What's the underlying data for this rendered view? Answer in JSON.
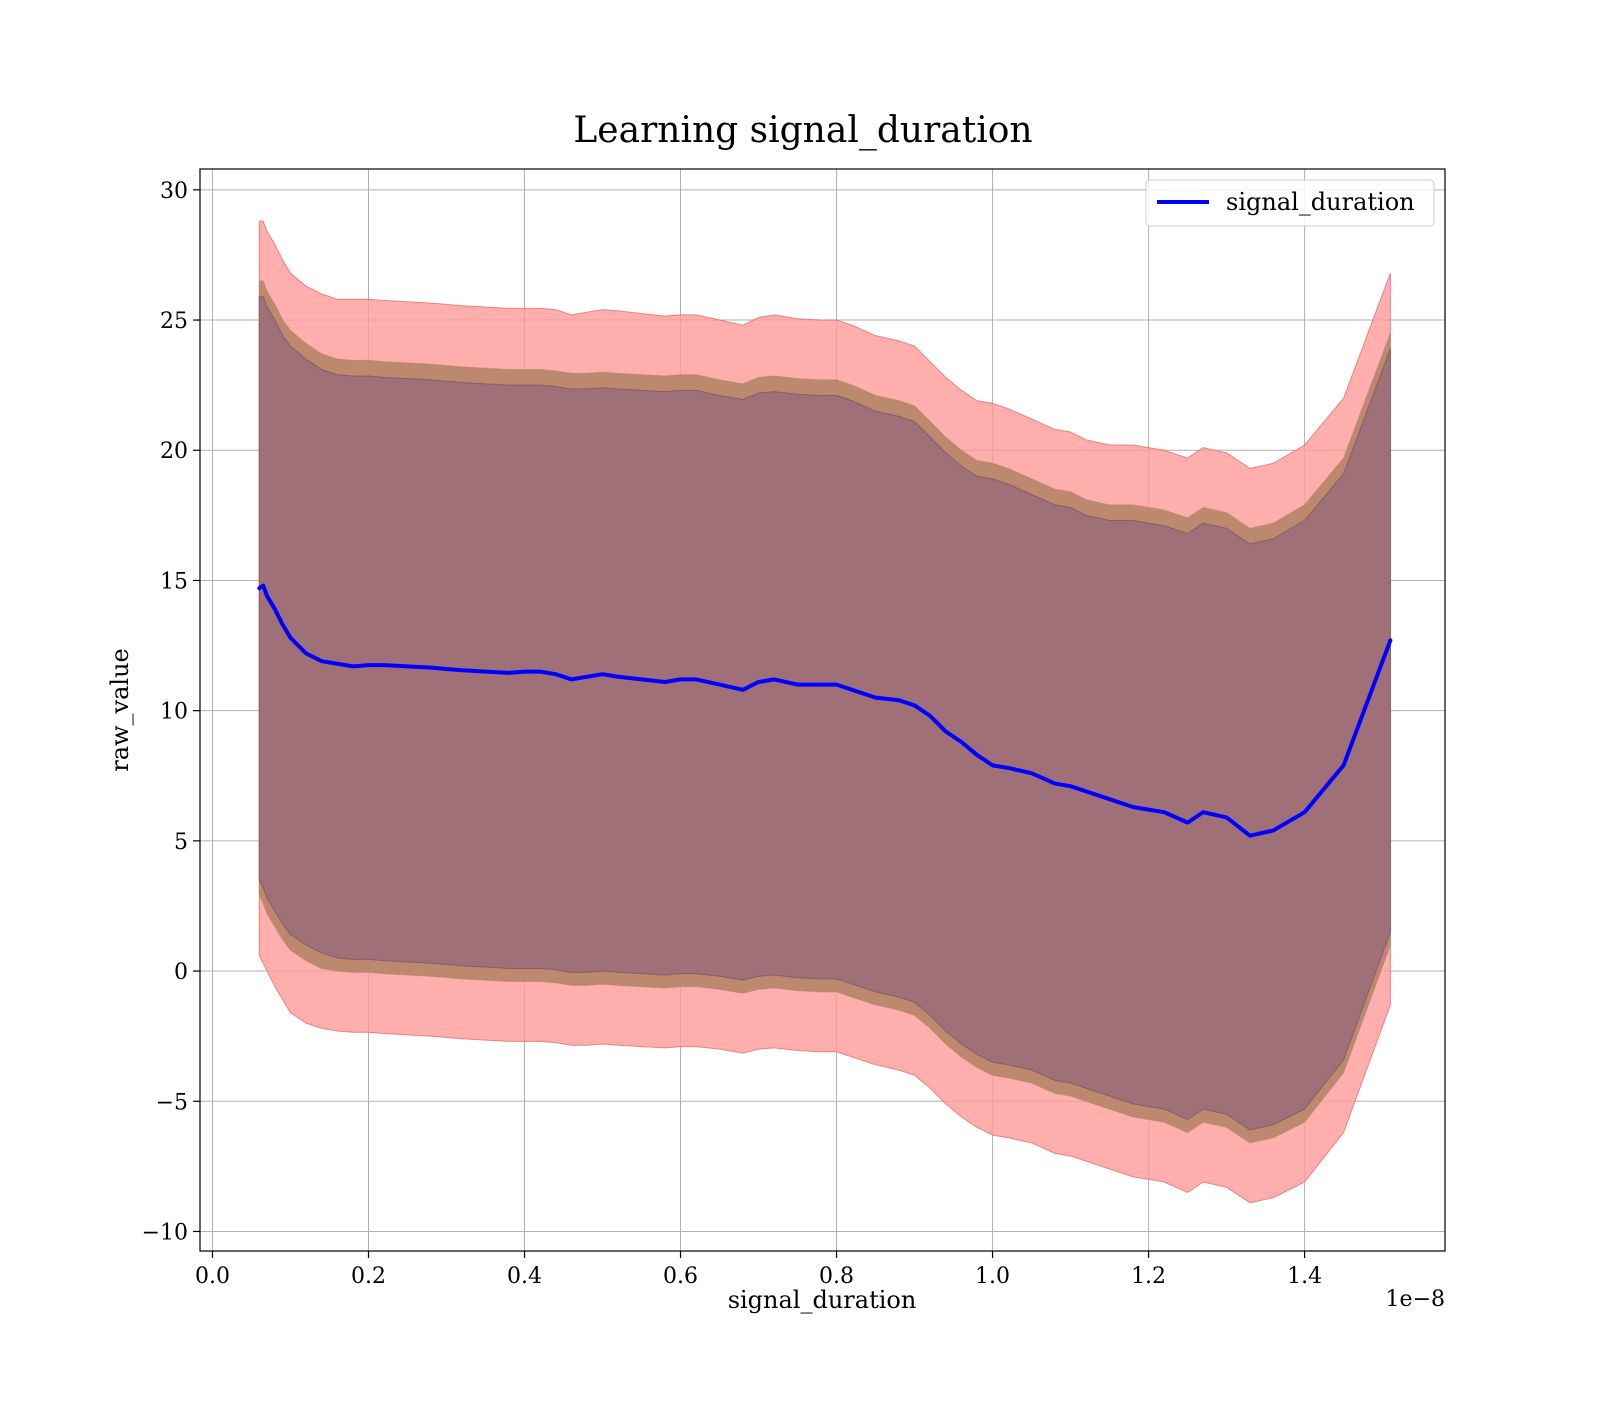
{
  "chart_data": {
    "type": "line",
    "title": "Learning signal_duration",
    "xlabel": "signal_duration",
    "ylabel": "raw_value",
    "x_offset_label": "1e−8",
    "xlim": [
      -0.016,
      1.58
    ],
    "ylim": [
      -10.75,
      30.8
    ],
    "x_ticks": [
      0.0,
      0.2,
      0.4,
      0.6,
      0.8,
      1.0,
      1.2,
      1.4
    ],
    "x_tick_labels": [
      "0.0",
      "0.2",
      "0.4",
      "0.6",
      "0.8",
      "1.0",
      "1.2",
      "1.4"
    ],
    "y_ticks": [
      -10,
      -5,
      0,
      5,
      10,
      15,
      20,
      25,
      30
    ],
    "y_tick_labels": [
      "−10",
      "−5",
      "0",
      "5",
      "10",
      "15",
      "20",
      "25",
      "30"
    ],
    "grid": true,
    "legend_position": "top-right",
    "colors": {
      "line": "#0000ff",
      "band_outer": "#ff9a9a",
      "band_outer_edge": "#e86060",
      "band_middle": "#b8876a",
      "band_inner": "#a07078",
      "band_inner_edge": "#7a4f63"
    },
    "series": [
      {
        "name": "signal_duration",
        "x": [
          0.06,
          0.065,
          0.07,
          0.08,
          0.09,
          0.1,
          0.12,
          0.14,
          0.16,
          0.18,
          0.2,
          0.22,
          0.25,
          0.28,
          0.3,
          0.32,
          0.35,
          0.38,
          0.4,
          0.42,
          0.44,
          0.46,
          0.48,
          0.5,
          0.52,
          0.55,
          0.58,
          0.6,
          0.62,
          0.65,
          0.68,
          0.7,
          0.72,
          0.75,
          0.78,
          0.8,
          0.82,
          0.85,
          0.88,
          0.9,
          0.92,
          0.94,
          0.96,
          0.98,
          1.0,
          1.02,
          1.05,
          1.08,
          1.1,
          1.12,
          1.15,
          1.18,
          1.2,
          1.22,
          1.25,
          1.27,
          1.3,
          1.33,
          1.36,
          1.4,
          1.45,
          1.51
        ],
        "values": [
          14.7,
          14.8,
          14.4,
          13.9,
          13.3,
          12.8,
          12.2,
          11.9,
          11.8,
          11.7,
          11.75,
          11.75,
          11.7,
          11.65,
          11.6,
          11.55,
          11.5,
          11.45,
          11.5,
          11.5,
          11.4,
          11.2,
          11.3,
          11.4,
          11.3,
          11.2,
          11.1,
          11.2,
          11.2,
          11.0,
          10.8,
          11.1,
          11.2,
          11.0,
          11.0,
          11.0,
          10.8,
          10.5,
          10.4,
          10.2,
          9.8,
          9.2,
          8.8,
          8.3,
          7.9,
          7.8,
          7.6,
          7.2,
          7.1,
          6.9,
          6.6,
          6.3,
          6.2,
          6.1,
          5.7,
          6.1,
          5.9,
          5.2,
          5.4,
          6.1,
          7.9,
          12.7
        ]
      }
    ],
    "bands": [
      {
        "role": "outer",
        "lower": [
          0.6,
          0.3,
          0.0,
          -0.6,
          -1.1,
          -1.6,
          -2.0,
          -2.2,
          -2.3,
          -2.35,
          -2.35,
          -2.4,
          -2.45,
          -2.5,
          -2.55,
          -2.6,
          -2.65,
          -2.7,
          -2.7,
          -2.7,
          -2.75,
          -2.85,
          -2.85,
          -2.8,
          -2.85,
          -2.9,
          -2.95,
          -2.9,
          -2.9,
          -3.0,
          -3.15,
          -3.0,
          -2.95,
          -3.05,
          -3.1,
          -3.1,
          -3.3,
          -3.6,
          -3.8,
          -4.0,
          -4.5,
          -5.1,
          -5.6,
          -6.0,
          -6.3,
          -6.4,
          -6.6,
          -7.0,
          -7.1,
          -7.3,
          -7.6,
          -7.9,
          -8.0,
          -8.1,
          -8.5,
          -8.1,
          -8.3,
          -8.9,
          -8.7,
          -8.1,
          -6.2,
          -1.3
        ],
        "upper": [
          28.8,
          28.8,
          28.4,
          27.9,
          27.3,
          26.8,
          26.3,
          26.0,
          25.8,
          25.8,
          25.8,
          25.75,
          25.7,
          25.65,
          25.6,
          25.55,
          25.5,
          25.45,
          25.45,
          25.45,
          25.4,
          25.2,
          25.3,
          25.4,
          25.35,
          25.25,
          25.15,
          25.2,
          25.2,
          25.0,
          24.8,
          25.1,
          25.2,
          25.05,
          25.0,
          25.0,
          24.8,
          24.4,
          24.2,
          24.0,
          23.4,
          22.8,
          22.3,
          21.9,
          21.8,
          21.6,
          21.2,
          20.8,
          20.7,
          20.4,
          20.2,
          20.2,
          20.1,
          20.0,
          19.7,
          20.1,
          19.9,
          19.3,
          19.5,
          20.2,
          22.0,
          26.8
        ]
      },
      {
        "role": "middle",
        "lower": [
          2.9,
          2.6,
          2.2,
          1.7,
          1.2,
          0.8,
          0.4,
          0.1,
          0.0,
          -0.05,
          -0.05,
          -0.1,
          -0.15,
          -0.2,
          -0.25,
          -0.3,
          -0.35,
          -0.4,
          -0.4,
          -0.4,
          -0.45,
          -0.55,
          -0.55,
          -0.5,
          -0.55,
          -0.6,
          -0.65,
          -0.6,
          -0.6,
          -0.7,
          -0.85,
          -0.7,
          -0.65,
          -0.75,
          -0.8,
          -0.8,
          -1.0,
          -1.3,
          -1.5,
          -1.7,
          -2.2,
          -2.8,
          -3.3,
          -3.7,
          -4.0,
          -4.1,
          -4.3,
          -4.7,
          -4.8,
          -5.0,
          -5.3,
          -5.6,
          -5.7,
          -5.8,
          -6.2,
          -5.8,
          -6.0,
          -6.6,
          -6.4,
          -5.8,
          -3.9,
          1.0
        ],
        "upper": [
          26.5,
          26.5,
          26.1,
          25.6,
          25.0,
          24.6,
          24.1,
          23.7,
          23.5,
          23.45,
          23.45,
          23.4,
          23.35,
          23.3,
          23.25,
          23.2,
          23.15,
          23.1,
          23.1,
          23.1,
          23.05,
          22.95,
          22.95,
          23.0,
          22.95,
          22.9,
          22.85,
          22.9,
          22.9,
          22.7,
          22.55,
          22.8,
          22.85,
          22.75,
          22.7,
          22.7,
          22.5,
          22.1,
          21.9,
          21.7,
          21.1,
          20.5,
          20.0,
          19.6,
          19.5,
          19.3,
          18.9,
          18.5,
          18.4,
          18.1,
          17.9,
          17.9,
          17.8,
          17.7,
          17.4,
          17.8,
          17.6,
          17.0,
          17.2,
          17.9,
          19.7,
          24.5
        ]
      },
      {
        "role": "inner",
        "lower": [
          3.5,
          3.2,
          2.8,
          2.3,
          1.8,
          1.4,
          1.0,
          0.7,
          0.5,
          0.45,
          0.45,
          0.4,
          0.35,
          0.3,
          0.25,
          0.2,
          0.15,
          0.1,
          0.1,
          0.1,
          0.05,
          -0.05,
          -0.05,
          0.0,
          -0.05,
          -0.1,
          -0.15,
          -0.1,
          -0.1,
          -0.2,
          -0.35,
          -0.2,
          -0.15,
          -0.25,
          -0.3,
          -0.3,
          -0.5,
          -0.8,
          -1.0,
          -1.2,
          -1.7,
          -2.3,
          -2.8,
          -3.2,
          -3.5,
          -3.6,
          -3.8,
          -4.2,
          -4.3,
          -4.5,
          -4.8,
          -5.1,
          -5.2,
          -5.3,
          -5.7,
          -5.3,
          -5.5,
          -6.1,
          -5.9,
          -5.3,
          -3.4,
          1.5
        ],
        "upper": [
          25.9,
          25.9,
          25.5,
          25.0,
          24.4,
          24.0,
          23.5,
          23.1,
          22.9,
          22.85,
          22.85,
          22.8,
          22.75,
          22.7,
          22.65,
          22.6,
          22.55,
          22.5,
          22.5,
          22.5,
          22.45,
          22.35,
          22.35,
          22.4,
          22.35,
          22.3,
          22.25,
          22.3,
          22.3,
          22.1,
          21.95,
          22.2,
          22.25,
          22.15,
          22.1,
          22.1,
          21.9,
          21.5,
          21.3,
          21.1,
          20.5,
          19.9,
          19.4,
          19.0,
          18.9,
          18.7,
          18.3,
          17.9,
          17.8,
          17.5,
          17.3,
          17.3,
          17.2,
          17.1,
          16.8,
          17.2,
          17.0,
          16.4,
          16.6,
          17.3,
          19.1,
          23.9
        ]
      }
    ]
  }
}
